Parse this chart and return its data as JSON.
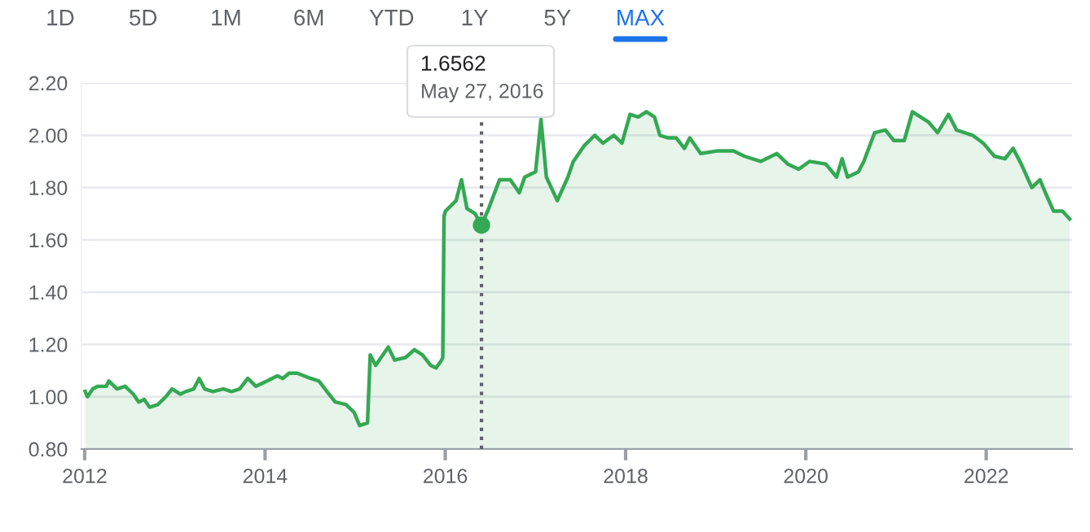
{
  "chart_data": {
    "type": "area",
    "x": [
      "2012-01-03",
      "2012-01-12",
      "2012-02-03",
      "2012-02-24",
      "2012-03-28",
      "2012-04-08",
      "2012-05-11",
      "2012-06-13",
      "2012-07-16",
      "2012-08-07",
      "2012-08-29",
      "2012-09-20",
      "2012-10-23",
      "2012-11-25",
      "2012-12-20",
      "2013-01-23",
      "2013-02-14",
      "2013-03-18",
      "2013-04-09",
      "2013-05-01",
      "2013-06-03",
      "2013-07-16",
      "2013-08-18",
      "2013-09-20",
      "2013-10-23",
      "2013-11-25",
      "2014-01-08",
      "2014-02-20",
      "2014-03-14",
      "2014-04-08",
      "2014-05-11",
      "2014-07-05",
      "2014-08-07",
      "2014-09-09",
      "2014-10-12",
      "2014-11-25",
      "2014-12-28",
      "2015-01-19",
      "2015-02-20",
      "2015-03-03",
      "2015-03-25",
      "2015-04-16",
      "2015-05-15",
      "2015-06-10",
      "2015-07-24",
      "2015-08-29",
      "2015-10-01",
      "2015-11-03",
      "2015-11-25",
      "2015-12-17",
      "2015-12-22",
      "2015-12-27",
      "2016-01-02",
      "2016-02-14",
      "2016-03-07",
      "2016-03-29",
      "2016-05-01",
      "2016-05-27",
      "2016-06-25",
      "2016-08-08",
      "2016-09-21",
      "2016-10-27",
      "2016-11-18",
      "2017-01-01",
      "2017-01-23",
      "2017-02-14",
      "2017-03-30",
      "2017-05-12",
      "2017-06-03",
      "2017-07-17",
      "2017-08-29",
      "2017-10-01",
      "2017-11-14",
      "2017-12-17",
      "2018-01-19",
      "2018-02-21",
      "2018-03-26",
      "2018-04-28",
      "2018-05-20",
      "2018-06-22",
      "2018-07-25",
      "2018-08-27",
      "2018-09-18",
      "2018-11-01",
      "2019-01-05",
      "2019-03-14",
      "2019-04-27",
      "2019-07-02",
      "2019-09-06",
      "2019-10-20",
      "2019-12-03",
      "2020-01-16",
      "2020-03-22",
      "2020-05-05",
      "2020-05-27",
      "2020-06-18",
      "2020-08-01",
      "2020-08-23",
      "2020-10-06",
      "2020-11-19",
      "2020-12-22",
      "2021-02-03",
      "2021-03-08",
      "2021-04-10",
      "2021-05-13",
      "2021-06-18",
      "2021-08-01",
      "2021-09-03",
      "2021-11-07",
      "2021-12-20",
      "2022-02-03",
      "2022-03-18",
      "2022-04-20",
      "2022-05-23",
      "2022-07-05",
      "2022-08-07",
      "2022-08-29",
      "2022-10-01",
      "2022-11-06",
      "2022-12-05"
    ],
    "series": [
      {
        "color": "#34a853",
        "values": [
          1.02,
          1.0,
          1.03,
          1.04,
          1.04,
          1.06,
          1.03,
          1.04,
          1.01,
          0.98,
          0.99,
          0.96,
          0.97,
          1.0,
          1.03,
          1.01,
          1.02,
          1.03,
          1.07,
          1.03,
          1.02,
          1.03,
          1.02,
          1.03,
          1.07,
          1.04,
          1.06,
          1.08,
          1.07,
          1.09,
          1.09,
          1.07,
          1.06,
          1.02,
          0.98,
          0.97,
          0.94,
          0.89,
          0.9,
          1.16,
          1.12,
          1.15,
          1.19,
          1.14,
          1.15,
          1.18,
          1.16,
          1.12,
          1.11,
          1.14,
          1.15,
          1.69,
          1.71,
          1.75,
          1.83,
          1.72,
          1.7,
          1.6562,
          1.72,
          1.83,
          1.83,
          1.78,
          1.84,
          1.86,
          2.06,
          1.84,
          1.75,
          1.84,
          1.9,
          1.96,
          2.0,
          1.97,
          2.0,
          1.97,
          2.08,
          2.07,
          2.09,
          2.07,
          2.0,
          1.99,
          1.99,
          1.95,
          1.99,
          1.93,
          1.94,
          1.94,
          1.92,
          1.9,
          1.93,
          1.89,
          1.87,
          1.9,
          1.89,
          1.84,
          1.91,
          1.84,
          1.86,
          1.9,
          2.01,
          2.02,
          1.98,
          1.98,
          2.09,
          2.07,
          2.05,
          2.01,
          2.08,
          2.02,
          2.0,
          1.97,
          1.92,
          1.91,
          1.95,
          1.89,
          1.8,
          1.83,
          1.78,
          1.71,
          1.71,
          1.68
        ]
      }
    ],
    "xlim": [
      "2011-12-19",
      "2022-12-15"
    ],
    "xticks": [
      {
        "value": "2012-01-01",
        "label": "2012"
      },
      {
        "value": "2014-01-01",
        "label": "2014"
      },
      {
        "value": "2016-01-01",
        "label": "2016"
      },
      {
        "value": "2018-01-01",
        "label": "2018"
      },
      {
        "value": "2020-01-01",
        "label": "2020"
      },
      {
        "value": "2022-01-01",
        "label": "2022"
      }
    ],
    "ylim": [
      0.8,
      2.2
    ],
    "yticks": [
      {
        "value": 0.8,
        "label": "0.80"
      },
      {
        "value": 1.0,
        "label": "1.00"
      },
      {
        "value": 1.2,
        "label": "1.20"
      },
      {
        "value": 1.4,
        "label": "1.40"
      },
      {
        "value": 1.6,
        "label": "1.60"
      },
      {
        "value": 1.8,
        "label": "1.80"
      },
      {
        "value": 2.0,
        "label": "2.00"
      },
      {
        "value": 2.2,
        "label": "2.20"
      }
    ],
    "grid": "y",
    "ref_lines": [
      {
        "axis": "x",
        "value": "2016-05-27",
        "label": null,
        "color": "#5f6368",
        "line_style": "dotted"
      }
    ],
    "annotations": [
      "1.6562",
      "May 27, 2016",
      "1D",
      "5D",
      "1M",
      "6M",
      "YTD",
      "1Y",
      "5Y",
      "MAX"
    ]
  }
}
